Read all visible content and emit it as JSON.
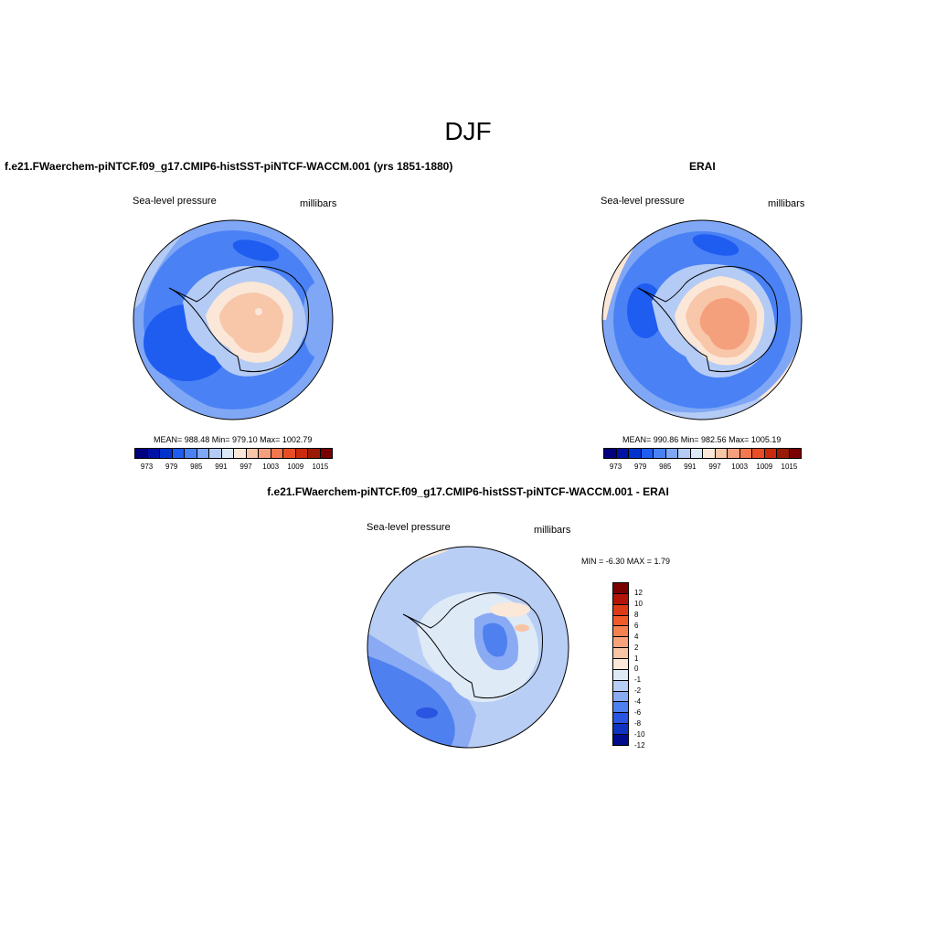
{
  "figure": {
    "title": "DJF"
  },
  "panel1": {
    "title": "f.e21.FWaerchem-piNTCF.f09_g17.CMIP6-histSST-piNTCF-WACCM.001 (yrs 1851-1880)",
    "variable": "Sea-level pressure",
    "units": "millibars",
    "stats": "MEAN= 988.48  Min= 979.10  Max= 1002.79",
    "colorbar_labels": [
      "973",
      "979",
      "985",
      "991",
      "997",
      "1003",
      "1009",
      "1015"
    ]
  },
  "panel2": {
    "title": "ERAI",
    "variable": "Sea-level pressure",
    "units": "millibars",
    "stats": "MEAN= 990.86  Min= 982.56  Max= 1005.19",
    "colorbar_labels": [
      "973",
      "979",
      "985",
      "991",
      "997",
      "1003",
      "1009",
      "1015"
    ]
  },
  "panel3": {
    "title": "f.e21.FWaerchem-piNTCF.f09_g17.CMIP6-histSST-piNTCF-WACCM.001 - ERAI",
    "variable": "Sea-level pressure",
    "units": "millibars",
    "stats": "MIN =  -6.30 MAX =   1.79",
    "colorbar_labels": [
      "12",
      "10",
      "8",
      "6",
      "4",
      "2",
      "1",
      "0",
      "-1",
      "-2",
      "-4",
      "-6",
      "-8",
      "-10",
      "-12"
    ]
  },
  "palettes": {
    "abs": [
      "#00007f",
      "#0011a6",
      "#0033cc",
      "#1f5cf0",
      "#4a82f5",
      "#7fa7f5",
      "#b4cbf5",
      "#dce8f8",
      "#fbe7d7",
      "#f8c6a9",
      "#f5a07c",
      "#f2784f",
      "#ea4d25",
      "#cc2a0e",
      "#9a1a05",
      "#7a0000"
    ],
    "diff": [
      "#7a0000",
      "#b3140a",
      "#dc3b16",
      "#f25a2a",
      "#f5814f",
      "#f7a27a",
      "#f8c4a6",
      "#fbe8d8",
      "#dfeaf7",
      "#b8cef5",
      "#8aabf4",
      "#4f80ef",
      "#2a55e0",
      "#1033c0",
      "#000c8c"
    ]
  }
}
